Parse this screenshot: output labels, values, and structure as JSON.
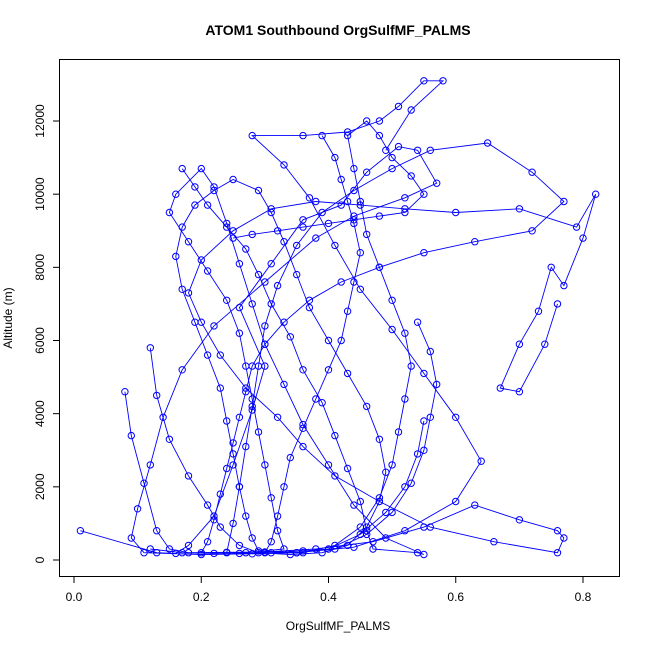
{
  "chart_data": {
    "type": "line",
    "title": "ATOM1 Southbound OrgSulfMF_PALMS",
    "xlabel": "OrgSulfMF_PALMS",
    "ylabel": "Altitude (m)",
    "xlim": [
      0.0,
      0.82
    ],
    "ylim": [
      0,
      13100
    ],
    "x_ticks": [
      0.0,
      0.2,
      0.4,
      0.6,
      0.8
    ],
    "x_tick_labels": [
      "0.0",
      "0.2",
      "0.4",
      "0.6",
      "0.8"
    ],
    "y_ticks": [
      0,
      2000,
      4000,
      6000,
      8000,
      10000,
      12000
    ],
    "y_tick_labels": [
      "0",
      "2000",
      "4000",
      "6000",
      "8000",
      "10000",
      "12000"
    ],
    "grid": false,
    "legend": "none",
    "color": "#0000ff",
    "marker": "open-circle",
    "series": [
      {
        "points": [
          [
            0.01,
            800
          ],
          [
            0.13,
            200
          ],
          [
            0.16,
            180
          ],
          [
            0.18,
            400
          ],
          [
            0.22,
            1200
          ],
          [
            0.25,
            2600
          ],
          [
            0.28,
            4100
          ],
          [
            0.3,
            5300
          ],
          [
            0.26,
            6900
          ],
          [
            0.31,
            8100
          ],
          [
            0.36,
            9300
          ],
          [
            0.42,
            9700
          ],
          [
            0.46,
            10600
          ],
          [
            0.51,
            11300
          ],
          [
            0.54,
            11200
          ],
          [
            0.57,
            10300
          ],
          [
            0.52,
            9900
          ],
          [
            0.44,
            9400
          ],
          [
            0.38,
            8800
          ],
          [
            0.3,
            7600
          ],
          [
            0.22,
            6400
          ],
          [
            0.17,
            5200
          ],
          [
            0.14,
            3900
          ],
          [
            0.12,
            2600
          ],
          [
            0.1,
            1400
          ],
          [
            0.09,
            600
          ],
          [
            0.11,
            200
          ],
          [
            0.2,
            150
          ],
          [
            0.28,
            170
          ],
          [
            0.35,
            200
          ],
          [
            0.44,
            350
          ],
          [
            0.52,
            800
          ],
          [
            0.6,
            1600
          ],
          [
            0.64,
            2700
          ],
          [
            0.6,
            3900
          ],
          [
            0.55,
            5100
          ],
          [
            0.5,
            6300
          ],
          [
            0.45,
            7400
          ],
          [
            0.41,
            8600
          ],
          [
            0.37,
            9900
          ],
          [
            0.33,
            10800
          ],
          [
            0.28,
            11600
          ],
          [
            0.36,
            11600
          ],
          [
            0.43,
            11700
          ],
          [
            0.48,
            12000
          ],
          [
            0.51,
            12400
          ],
          [
            0.55,
            13100
          ],
          [
            0.58,
            13100
          ],
          [
            0.53,
            12300
          ],
          [
            0.49,
            11200
          ]
        ]
      },
      {
        "points": [
          [
            0.08,
            4600
          ],
          [
            0.09,
            3400
          ],
          [
            0.11,
            2100
          ],
          [
            0.13,
            800
          ],
          [
            0.15,
            300
          ],
          [
            0.18,
            200
          ],
          [
            0.24,
            210
          ],
          [
            0.3,
            220
          ],
          [
            0.38,
            300
          ],
          [
            0.47,
            500
          ],
          [
            0.55,
            900
          ],
          [
            0.63,
            1500
          ],
          [
            0.7,
            1100
          ],
          [
            0.76,
            800
          ],
          [
            0.77,
            600
          ],
          [
            0.76,
            200
          ],
          [
            0.66,
            500
          ],
          [
            0.56,
            900
          ],
          [
            0.48,
            1600
          ],
          [
            0.41,
            2300
          ],
          [
            0.36,
            3100
          ],
          [
            0.32,
            3900
          ],
          [
            0.27,
            4700
          ],
          [
            0.23,
            5600
          ],
          [
            0.2,
            6500
          ],
          [
            0.18,
            7300
          ],
          [
            0.2,
            8200
          ],
          [
            0.25,
            9000
          ],
          [
            0.31,
            9600
          ],
          [
            0.38,
            9800
          ],
          [
            0.45,
            9700
          ],
          [
            0.52,
            9600
          ],
          [
            0.6,
            9500
          ],
          [
            0.7,
            9600
          ],
          [
            0.79,
            9100
          ],
          [
            0.82,
            10000
          ],
          [
            0.8,
            8800
          ],
          [
            0.77,
            7500
          ],
          [
            0.75,
            8000
          ],
          [
            0.73,
            6800
          ],
          [
            0.7,
            5900
          ],
          [
            0.67,
            4700
          ],
          [
            0.7,
            4600
          ],
          [
            0.74,
            5900
          ],
          [
            0.76,
            7000
          ]
        ]
      },
      {
        "points": [
          [
            0.17,
            10700
          ],
          [
            0.19,
            10200
          ],
          [
            0.21,
            9700
          ],
          [
            0.24,
            9100
          ],
          [
            0.27,
            8500
          ],
          [
            0.29,
            7800
          ],
          [
            0.31,
            7000
          ],
          [
            0.34,
            6100
          ],
          [
            0.36,
            5200
          ],
          [
            0.39,
            4300
          ],
          [
            0.41,
            3400
          ],
          [
            0.43,
            2500
          ],
          [
            0.45,
            1600
          ],
          [
            0.46,
            800
          ],
          [
            0.47,
            300
          ],
          [
            0.54,
            200
          ],
          [
            0.55,
            150
          ],
          [
            0.49,
            600
          ],
          [
            0.44,
            1500
          ],
          [
            0.4,
            2600
          ],
          [
            0.36,
            3700
          ],
          [
            0.33,
            4800
          ],
          [
            0.3,
            5900
          ],
          [
            0.28,
            7000
          ],
          [
            0.26,
            8100
          ],
          [
            0.24,
            9200
          ],
          [
            0.22,
            10200
          ],
          [
            0.2,
            10700
          ],
          [
            0.16,
            10000
          ],
          [
            0.15,
            9500
          ],
          [
            0.18,
            8700
          ],
          [
            0.21,
            7900
          ],
          [
            0.24,
            7100
          ],
          [
            0.26,
            6200
          ],
          [
            0.27,
            5300
          ],
          [
            0.28,
            4400
          ],
          [
            0.29,
            3500
          ],
          [
            0.3,
            2600
          ],
          [
            0.31,
            1700
          ],
          [
            0.32,
            800
          ],
          [
            0.33,
            300
          ],
          [
            0.27,
            200
          ],
          [
            0.22,
            180
          ],
          [
            0.17,
            200
          ],
          [
            0.12,
            300
          ]
        ]
      },
      {
        "points": [
          [
            0.24,
            200
          ],
          [
            0.25,
            1000
          ],
          [
            0.26,
            2000
          ],
          [
            0.27,
            3100
          ],
          [
            0.28,
            4200
          ],
          [
            0.29,
            5300
          ],
          [
            0.3,
            6400
          ],
          [
            0.32,
            7500
          ],
          [
            0.35,
            8600
          ],
          [
            0.39,
            9500
          ],
          [
            0.44,
            10100
          ],
          [
            0.5,
            10700
          ],
          [
            0.56,
            11200
          ],
          [
            0.65,
            11400
          ],
          [
            0.72,
            10600
          ],
          [
            0.77,
            9800
          ],
          [
            0.72,
            9000
          ],
          [
            0.63,
            8700
          ],
          [
            0.55,
            8400
          ],
          [
            0.48,
            8000
          ],
          [
            0.42,
            7600
          ],
          [
            0.37,
            7100
          ],
          [
            0.33,
            6500
          ],
          [
            0.3,
            5900
          ],
          [
            0.28,
            5300
          ],
          [
            0.27,
            4600
          ],
          [
            0.26,
            3900
          ],
          [
            0.25,
            3200
          ],
          [
            0.24,
            2500
          ],
          [
            0.23,
            1800
          ],
          [
            0.22,
            1100
          ],
          [
            0.21,
            500
          ],
          [
            0.2,
            200
          ],
          [
            0.26,
            180
          ],
          [
            0.31,
            200
          ],
          [
            0.36,
            250
          ],
          [
            0.41,
            300
          ],
          [
            0.46,
            700
          ],
          [
            0.5,
            1300
          ],
          [
            0.53,
            2100
          ],
          [
            0.55,
            3000
          ],
          [
            0.56,
            3900
          ],
          [
            0.57,
            4800
          ],
          [
            0.56,
            5700
          ],
          [
            0.54,
            6500
          ]
        ]
      },
      {
        "points": [
          [
            0.39,
            11600
          ],
          [
            0.41,
            11000
          ],
          [
            0.42,
            10400
          ],
          [
            0.43,
            9800
          ],
          [
            0.44,
            9200
          ],
          [
            0.45,
            8400
          ],
          [
            0.44,
            7600
          ],
          [
            0.43,
            6800
          ],
          [
            0.42,
            6000
          ],
          [
            0.4,
            5200
          ],
          [
            0.38,
            4400
          ],
          [
            0.36,
            3600
          ],
          [
            0.34,
            2800
          ],
          [
            0.33,
            2000
          ],
          [
            0.32,
            1200
          ],
          [
            0.31,
            500
          ],
          [
            0.3,
            200
          ],
          [
            0.36,
            200
          ],
          [
            0.41,
            400
          ],
          [
            0.45,
            900
          ],
          [
            0.48,
            1700
          ],
          [
            0.5,
            2600
          ],
          [
            0.51,
            3500
          ],
          [
            0.52,
            4400
          ],
          [
            0.53,
            5300
          ],
          [
            0.52,
            6200
          ],
          [
            0.5,
            7100
          ],
          [
            0.48,
            8000
          ],
          [
            0.46,
            8900
          ],
          [
            0.45,
            9800
          ],
          [
            0.44,
            10700
          ],
          [
            0.43,
            11600
          ],
          [
            0.46,
            12000
          ],
          [
            0.48,
            11600
          ],
          [
            0.5,
            11000
          ],
          [
            0.53,
            10500
          ],
          [
            0.55,
            10000
          ],
          [
            0.52,
            9500
          ],
          [
            0.48,
            9400
          ],
          [
            0.44,
            9300
          ],
          [
            0.4,
            9200
          ],
          [
            0.36,
            9100
          ],
          [
            0.32,
            9000
          ],
          [
            0.28,
            8900
          ],
          [
            0.25,
            8800
          ]
        ]
      },
      {
        "points": [
          [
            0.12,
            5800
          ],
          [
            0.13,
            4500
          ],
          [
            0.15,
            3300
          ],
          [
            0.18,
            2300
          ],
          [
            0.21,
            1500
          ],
          [
            0.23,
            900
          ],
          [
            0.26,
            400
          ],
          [
            0.29,
            200
          ],
          [
            0.34,
            150
          ],
          [
            0.39,
            200
          ],
          [
            0.43,
            400
          ],
          [
            0.46,
            900
          ],
          [
            0.48,
            1600
          ],
          [
            0.49,
            2400
          ],
          [
            0.48,
            3300
          ],
          [
            0.46,
            4200
          ],
          [
            0.43,
            5100
          ],
          [
            0.4,
            6000
          ],
          [
            0.37,
            6900
          ],
          [
            0.35,
            7800
          ],
          [
            0.33,
            8700
          ],
          [
            0.31,
            9500
          ],
          [
            0.29,
            10100
          ],
          [
            0.25,
            10400
          ],
          [
            0.22,
            10100
          ],
          [
            0.19,
            9700
          ],
          [
            0.17,
            9100
          ],
          [
            0.16,
            8300
          ],
          [
            0.17,
            7400
          ],
          [
            0.19,
            6500
          ],
          [
            0.21,
            5600
          ],
          [
            0.23,
            4700
          ],
          [
            0.24,
            3800
          ],
          [
            0.25,
            2900
          ],
          [
            0.26,
            2000
          ],
          [
            0.27,
            1200
          ],
          [
            0.28,
            600
          ],
          [
            0.29,
            250
          ],
          [
            0.35,
            200
          ],
          [
            0.4,
            300
          ],
          [
            0.45,
            700
          ],
          [
            0.49,
            1300
          ],
          [
            0.52,
            2000
          ],
          [
            0.54,
            2900
          ],
          [
            0.55,
            3800
          ]
        ]
      }
    ]
  }
}
